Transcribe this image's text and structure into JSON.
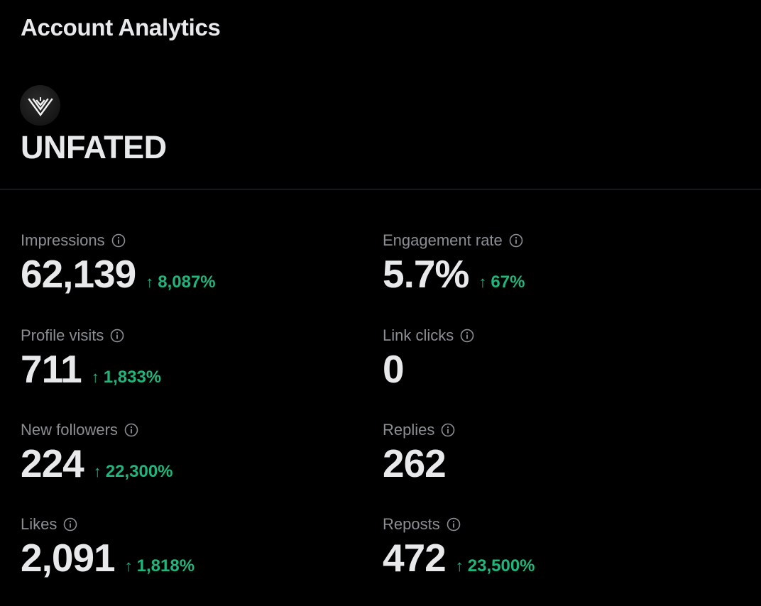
{
  "header": {
    "title": "Account Analytics"
  },
  "account": {
    "name": "UNFATED",
    "avatar_icon": "unfated-logo-icon"
  },
  "colors": {
    "background": "#000000",
    "text_primary": "#e7e9ea",
    "text_secondary": "#8b8f94",
    "positive_change": "#1fb57c",
    "divider": "#333639"
  },
  "metrics": [
    {
      "label": "Impressions",
      "value": "62,139",
      "change": "8,087%",
      "direction": "up"
    },
    {
      "label": "Engagement rate",
      "value": "5.7%",
      "change": "67%",
      "direction": "up"
    },
    {
      "label": "Profile visits",
      "value": "711",
      "change": "1,833%",
      "direction": "up"
    },
    {
      "label": "Link clicks",
      "value": "0",
      "change": "",
      "direction": ""
    },
    {
      "label": "New followers",
      "value": "224",
      "change": "22,300%",
      "direction": "up"
    },
    {
      "label": "Replies",
      "value": "262",
      "change": "",
      "direction": ""
    },
    {
      "label": "Likes",
      "value": "2,091",
      "change": "1,818%",
      "direction": "up"
    },
    {
      "label": "Reposts",
      "value": "472",
      "change": "23,500%",
      "direction": "up"
    }
  ]
}
